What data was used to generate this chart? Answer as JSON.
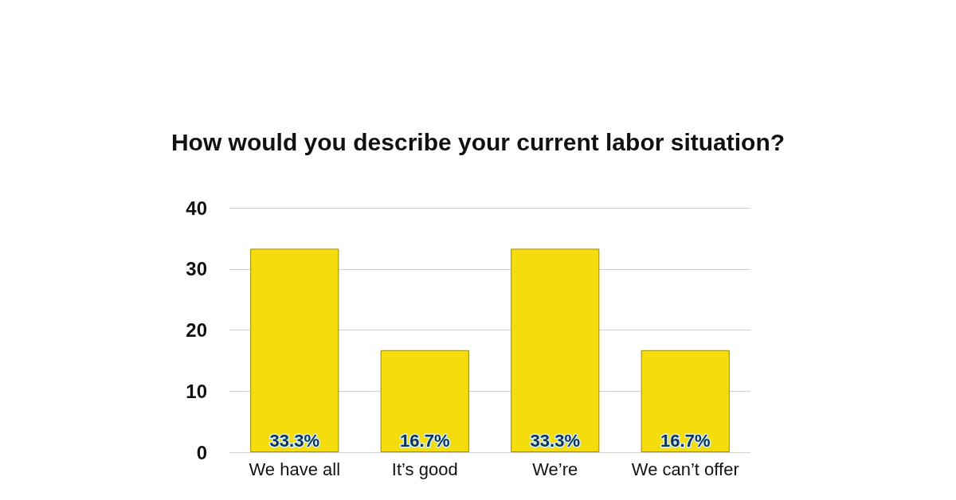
{
  "chart_data": {
    "type": "bar",
    "title": "How would you describe your current labor situation?",
    "categories": [
      "We have all",
      "It’s good",
      "We’re",
      "We can’t offer"
    ],
    "values": [
      33.3,
      16.7,
      33.3,
      16.7
    ],
    "color": "#f5dc0c",
    "value_labels": [
      "33.3%",
      "16.7%",
      "33.3%",
      "16.7%"
    ],
    "ylim": [
      0,
      40
    ],
    "yticks": [
      0,
      10,
      20,
      30,
      40
    ],
    "grid": "y"
  }
}
